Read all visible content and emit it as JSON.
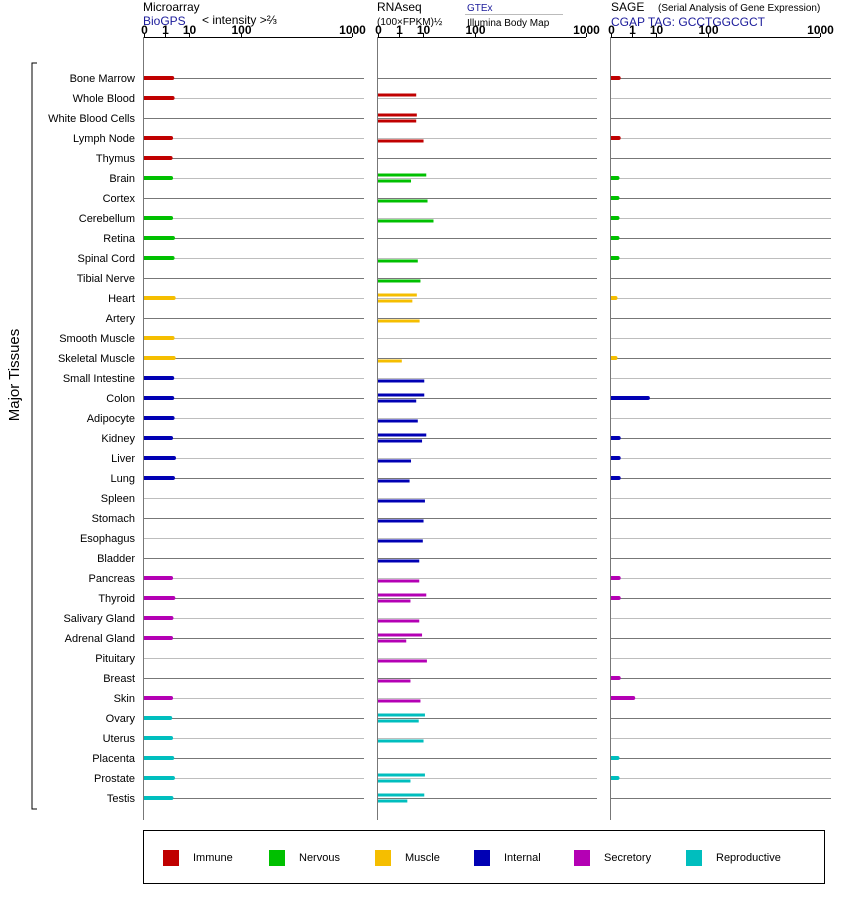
{
  "panels": {
    "microarray": {
      "title": "Microarray",
      "source": "BioGPS",
      "unit": "< intensity >⅔"
    },
    "rnaseq": {
      "title": "RNAseq",
      "unit": "(100×FPKM)½",
      "source1": "GTEx",
      "source2": "Illumina Body Map"
    },
    "sage": {
      "title": "SAGE",
      "subtitle": "(Serial Analysis of Gene Expression)",
      "tag": "CGAP TAG: GCCTGGCGCT"
    }
  },
  "y_group_label": "Major Tissues",
  "legend": [
    {
      "name": "Immune",
      "color": "#c00000"
    },
    {
      "name": "Nervous",
      "color": "#00c000"
    },
    {
      "name": "Muscle",
      "color": "#f5be00"
    },
    {
      "name": "Internal",
      "color": "#0000b4"
    },
    {
      "name": "Secretory",
      "color": "#b400b4"
    },
    {
      "name": "Reproductive",
      "color": "#00bebe"
    }
  ],
  "chart_data": {
    "type": "bar",
    "axis_scale": "power 1/3",
    "ticks": [
      "0",
      "1",
      "10",
      "100",
      "1000"
    ],
    "xlim": [
      0,
      1000
    ],
    "categories": [
      "Bone Marrow",
      "Whole Blood",
      "White Blood Cells",
      "Lymph Node",
      "Thymus",
      "Brain",
      "Cortex",
      "Cerebellum",
      "Retina",
      "Spinal Cord",
      "Tibial Nerve",
      "Heart",
      "Artery",
      "Smooth Muscle",
      "Skeletal Muscle",
      "Small Intestine",
      "Colon",
      "Adipocyte",
      "Kidney",
      "Liver",
      "Lung",
      "Spleen",
      "Stomach",
      "Esophagus",
      "Bladder",
      "Pancreas",
      "Thyroid",
      "Salivary Gland",
      "Adrenal Gland",
      "Pituitary",
      "Breast",
      "Skin",
      "Ovary",
      "Uterus",
      "Placenta",
      "Prostate",
      "Testis"
    ],
    "system": [
      "Immune",
      "Immune",
      "Immune",
      "Immune",
      "Immune",
      "Nervous",
      "Nervous",
      "Nervous",
      "Nervous",
      "Nervous",
      "Nervous",
      "Muscle",
      "Muscle",
      "Muscle",
      "Muscle",
      "Internal",
      "Internal",
      "Internal",
      "Internal",
      "Internal",
      "Internal",
      "Internal",
      "Internal",
      "Internal",
      "Internal",
      "Secretory",
      "Secretory",
      "Secretory",
      "Secretory",
      "Secretory",
      "Secretory",
      "Secretory",
      "Reproductive",
      "Reproductive",
      "Reproductive",
      "Reproductive",
      "Reproductive"
    ],
    "series": [
      {
        "name": "BioGPS",
        "values": [
          2.5,
          2.6,
          null,
          2.2,
          2.1,
          2.2,
          null,
          2.2,
          2.7,
          2.6,
          null,
          2.9,
          null,
          2.6,
          2.9,
          2.5,
          2.5,
          2.6,
          2.2,
          3.0,
          2.7,
          null,
          null,
          null,
          null,
          2.2,
          2.8,
          2.3,
          2.2,
          null,
          null,
          2.2,
          2.0,
          2.2,
          2.5,
          2.7,
          2.3
        ]
      },
      {
        "name": "GTEx",
        "values": [
          null,
          6.2,
          6.5,
          null,
          null,
          12.5,
          null,
          null,
          null,
          null,
          null,
          6.5,
          null,
          null,
          null,
          null,
          11,
          null,
          12.5,
          null,
          null,
          null,
          null,
          null,
          null,
          null,
          12.5,
          null,
          9.5,
          null,
          null,
          null,
          11.5,
          null,
          null,
          11.5,
          11
        ]
      },
      {
        "name": "Illumina Body Map",
        "values": [
          null,
          null,
          6.2,
          10.5,
          null,
          4.0,
          13.5,
          19,
          null,
          7.0,
          8.5,
          4.5,
          8.0,
          null,
          1.5,
          11,
          6.2,
          7.0,
          9.5,
          4.0,
          3.5,
          11.5,
          10.5,
          10,
          7.8,
          7.8,
          3.8,
          7.8,
          2.5,
          13,
          3.8,
          8.5,
          7.5,
          10.5,
          null,
          3.8,
          2.8
        ]
      },
      {
        "name": "SAGE",
        "values": [
          0.05,
          null,
          null,
          0.05,
          null,
          0.03,
          0.03,
          0.03,
          0.03,
          0.03,
          null,
          0.01,
          null,
          null,
          0.01,
          null,
          5.5,
          null,
          0.05,
          0.05,
          0.05,
          null,
          null,
          null,
          null,
          0.05,
          0.05,
          null,
          null,
          null,
          0.05,
          1.2,
          null,
          null,
          0.03,
          0.03,
          null
        ]
      }
    ]
  }
}
